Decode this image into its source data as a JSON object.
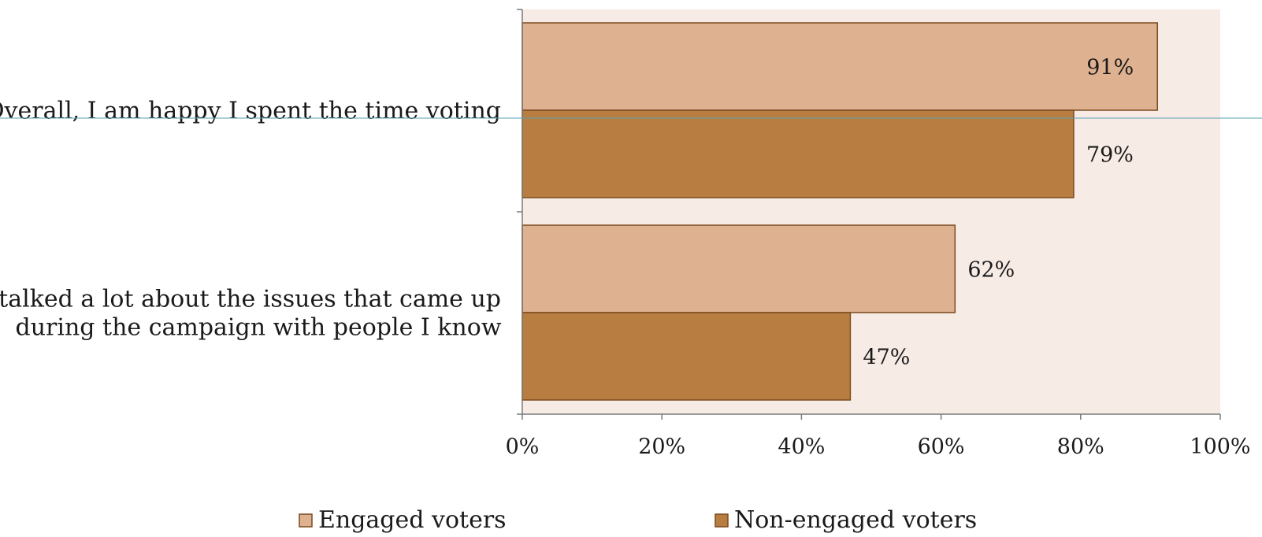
{
  "chart_data": {
    "type": "bar",
    "orientation": "horizontal",
    "categories": [
      [
        "Overall, I am happy I spent the time voting"
      ],
      [
        "I talked a lot about the issues that came up",
        "during the campaign with people I know"
      ]
    ],
    "series": [
      {
        "name": "Engaged voters",
        "values": [
          91,
          62
        ],
        "color": "#deb190",
        "data_labels": [
          "91%",
          "62%"
        ]
      },
      {
        "name": "Non-engaged voters",
        "values": [
          79,
          47
        ],
        "color": "#b87e41",
        "data_labels": [
          "79%",
          "47%"
        ]
      }
    ],
    "xlim": [
      0,
      100
    ],
    "x_ticks": [
      0,
      20,
      40,
      60,
      80,
      100
    ],
    "x_tick_labels": [
      "0%",
      "20%",
      "40%",
      "60%",
      "80%",
      "100%"
    ],
    "grid": false,
    "legend_position": "bottom",
    "plot_background": "#f7ebe6",
    "bar_border_color": "#7a4a1e",
    "title": "",
    "xlabel": "",
    "ylabel": ""
  }
}
